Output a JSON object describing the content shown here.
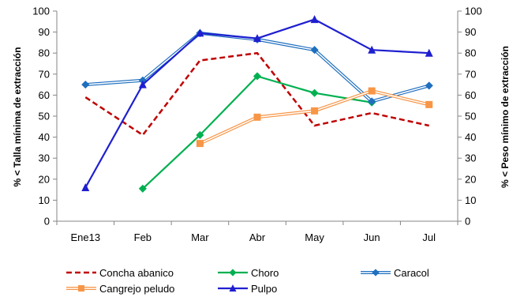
{
  "chart_data": {
    "type": "line",
    "title": "",
    "categories": [
      "Ene13",
      "Feb",
      "Mar",
      "Abr",
      "May",
      "Jun",
      "Jul"
    ],
    "ylabel_left": "% < Talla mínima de extracción",
    "ylabel_right": "% < Peso mínimo de extracción",
    "ylim": [
      0,
      100
    ],
    "yticks": [
      "0",
      "10",
      "20",
      "30",
      "40",
      "50",
      "60",
      "70",
      "80",
      "90",
      "100"
    ],
    "grid": false,
    "legend_position": "bottom",
    "series": [
      {
        "name": "Concha abanico",
        "axis": "left",
        "values": [
          59,
          41,
          76.5,
          80,
          45.5,
          51.5,
          45.5
        ],
        "color": "#c00000",
        "style": "dashed",
        "marker": "none"
      },
      {
        "name": "Choro",
        "axis": "left",
        "values": [
          null,
          15.5,
          41,
          69,
          61,
          56.5,
          null
        ],
        "color": "#00b050",
        "style": "solid",
        "marker": "diamond"
      },
      {
        "name": "Caracol",
        "axis": "right",
        "values": [
          65,
          67,
          89.5,
          86.5,
          81.5,
          57,
          64.5
        ],
        "color": "#1f6fbf",
        "style": "double",
        "marker": "diamond"
      },
      {
        "name": "Cangrejo peludo",
        "axis": "left",
        "values": [
          null,
          null,
          37,
          49.5,
          52.5,
          62,
          55.5
        ],
        "color": "#f79646",
        "style": "double",
        "marker": "square"
      },
      {
        "name": "Pulpo",
        "axis": "right",
        "values": [
          16,
          65,
          89.5,
          87,
          96,
          81.5,
          80
        ],
        "color": "#1f1fd0",
        "style": "solid",
        "marker": "triangle"
      }
    ]
  }
}
